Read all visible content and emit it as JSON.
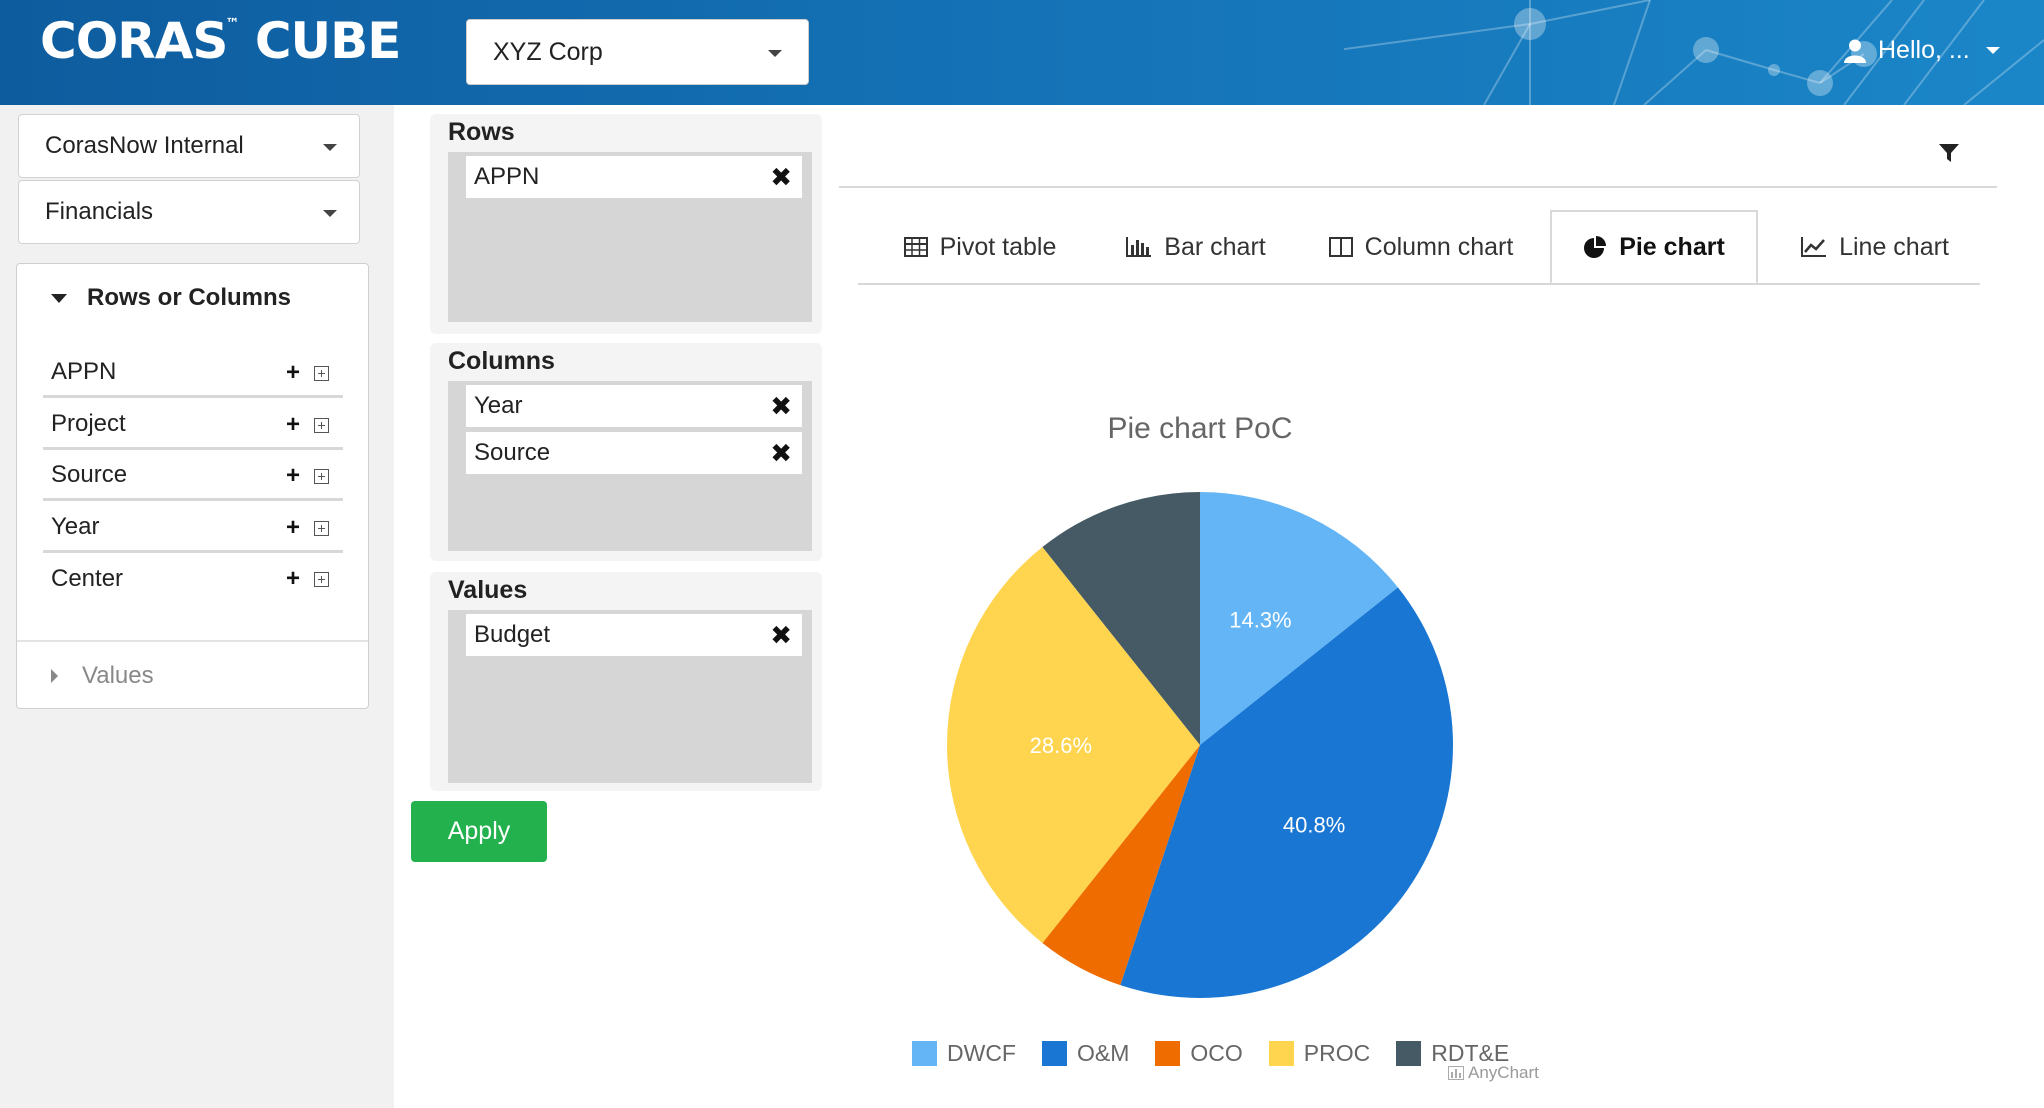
{
  "header": {
    "logo_main": "CORAS",
    "logo_tm": "™",
    "logo_rest": " CUBE",
    "company_select_value": "XYZ Corp",
    "user_greeting": "Hello, ..."
  },
  "sidebar": {
    "workspace_value": "CorasNow Internal",
    "module_value": "Financials",
    "rows_columns_label": "Rows or Columns",
    "fields": [
      "APPN",
      "Project",
      "Source",
      "Year",
      "Center"
    ],
    "values_label": "Values"
  },
  "zones": {
    "rows": {
      "title": "Rows",
      "items": [
        "APPN"
      ]
    },
    "columns": {
      "title": "Columns",
      "items": [
        "Year",
        "Source"
      ]
    },
    "values": {
      "title": "Values",
      "items": [
        "Budget"
      ]
    },
    "apply_label": "Apply"
  },
  "tabs": [
    {
      "label": "Pivot table",
      "icon": "table-icon"
    },
    {
      "label": "Bar chart",
      "icon": "bar-chart-icon"
    },
    {
      "label": "Column chart",
      "icon": "column-chart-icon"
    },
    {
      "label": "Pie chart",
      "icon": "pie-chart-icon",
      "active": true
    },
    {
      "label": "Line chart",
      "icon": "line-chart-icon"
    }
  ],
  "credits_label": "AnyChart",
  "chart_data": {
    "type": "pie",
    "title": "Pie chart PoC",
    "categories": [
      "DWCF",
      "O&M",
      "OCO",
      "PROC",
      "RDT&E"
    ],
    "values": [
      14.3,
      40.8,
      5.6,
      28.6,
      10.7
    ],
    "data_labels": [
      "14.3%",
      "40.8%",
      "",
      "28.6%",
      ""
    ],
    "colors": [
      "#64b5f6",
      "#1976d2",
      "#ef6c00",
      "#ffd54f",
      "#455a64"
    ],
    "legend_position": "bottom"
  }
}
